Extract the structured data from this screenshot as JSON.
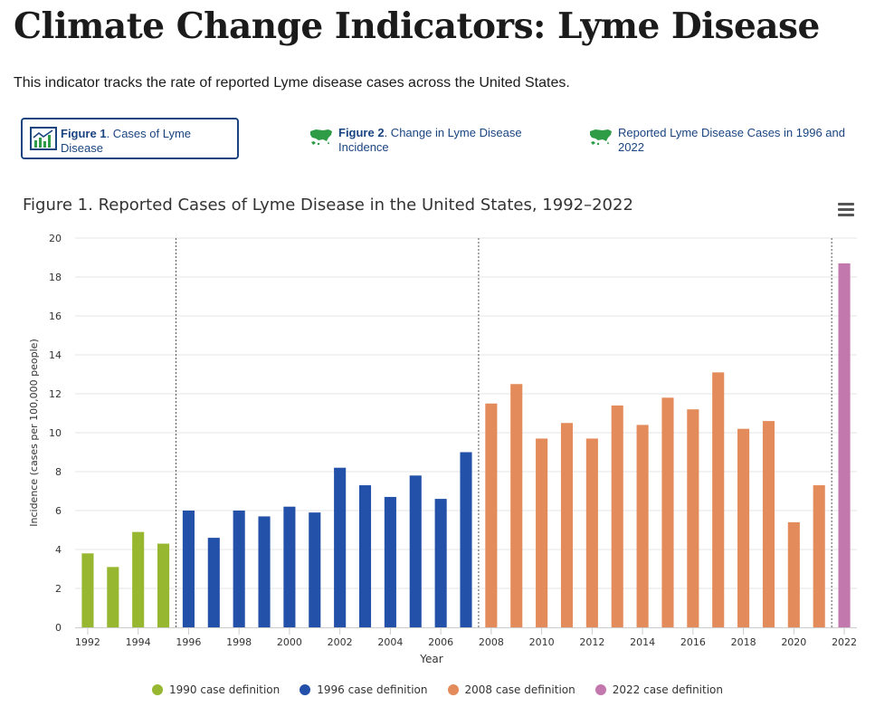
{
  "page": {
    "title": "Climate Change Indicators: Lyme Disease",
    "intro": "This indicator tracks the rate of reported Lyme disease cases across the United States."
  },
  "tabs": [
    {
      "bold": "Figure 1",
      "text": ". Cases of Lyme Disease",
      "icon": "bar-chart-icon"
    },
    {
      "bold": "Figure 2",
      "text": ". Change in Lyme Disease Incidence",
      "icon": "us-map-icon"
    },
    {
      "bold": "",
      "text": "Reported Lyme Disease Cases in 1996 and 2022",
      "icon": "us-map-icon"
    }
  ],
  "colors": {
    "accent": "#1a4480",
    "map_icon": "#2e9c46"
  },
  "chart_data": {
    "type": "bar",
    "title": "Figure 1. Reported Cases of Lyme Disease in the United States, 1992–2022",
    "xlabel": "Year",
    "ylabel": "Incidence (cases per 100,000 people)",
    "ylim": [
      0,
      20
    ],
    "yticks": [
      "0",
      "2",
      "4",
      "6",
      "8",
      "10",
      "12",
      "14",
      "16",
      "18",
      "20"
    ],
    "xticks": [
      "1992",
      "1994",
      "1996",
      "1998",
      "2000",
      "2002",
      "2004",
      "2006",
      "2008",
      "2010",
      "2012",
      "2014",
      "2016",
      "2018",
      "2020",
      "2022"
    ],
    "grid": true,
    "legend_position": "bottom",
    "series": [
      {
        "name": "1990 case definition",
        "color": "#97b731",
        "x": [
          1992,
          1993,
          1994,
          1995
        ],
        "values": [
          3.8,
          3.1,
          4.9,
          4.3
        ]
      },
      {
        "name": "1996 case definition",
        "color": "#2350a8",
        "x": [
          1996,
          1997,
          1998,
          1999,
          2000,
          2001,
          2002,
          2003,
          2004,
          2005,
          2006,
          2007
        ],
        "values": [
          6.0,
          4.6,
          6.0,
          5.7,
          6.2,
          5.9,
          8.2,
          7.3,
          6.7,
          7.8,
          6.6,
          9.0
        ]
      },
      {
        "name": "2008 case definition",
        "color": "#e38b5a",
        "x": [
          2008,
          2009,
          2010,
          2011,
          2012,
          2013,
          2014,
          2015,
          2016,
          2017,
          2018,
          2019,
          2020,
          2021
        ],
        "values": [
          11.5,
          12.5,
          9.7,
          10.5,
          9.7,
          11.4,
          10.4,
          11.8,
          11.2,
          13.1,
          10.2,
          10.6,
          5.4,
          7.3
        ]
      },
      {
        "name": "2022 case definition",
        "color": "#c277ad",
        "x": [
          2022
        ],
        "values": [
          18.7
        ]
      }
    ]
  }
}
